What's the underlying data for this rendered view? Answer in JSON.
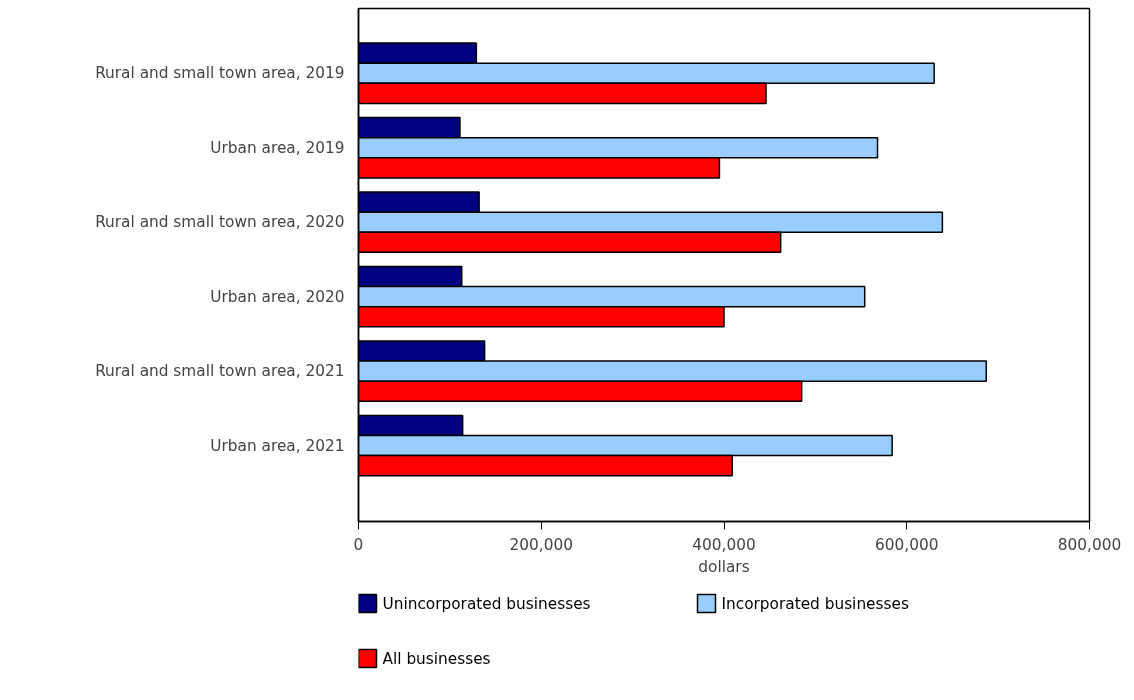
{
  "chart_data": {
    "type": "bar",
    "orientation": "horizontal",
    "categories": [
      "Rural and small town area, 2019",
      "Urban area, 2019",
      "Rural and small town area, 2020",
      "Urban area, 2020",
      "Rural and small town area, 2021",
      "Urban area, 2021"
    ],
    "series": [
      {
        "name": "Unincorporated businesses",
        "color": "#000080",
        "values": [
          129000,
          111000,
          132000,
          113000,
          138000,
          114000
        ]
      },
      {
        "name": "Incorporated businesses",
        "color": "#99ccff",
        "values": [
          630000,
          568000,
          639000,
          554000,
          687000,
          584000
        ]
      },
      {
        "name": "All businesses",
        "color": "#ff0000",
        "values": [
          446000,
          395000,
          462000,
          400000,
          485000,
          409000
        ]
      }
    ],
    "xlabel": "dollars",
    "xlim": [
      0,
      800000
    ],
    "xticks": [
      0,
      {
        "value": 200000,
        "label": "200,000"
      },
      {
        "value": 400000,
        "label": "400,000"
      },
      {
        "value": 600000,
        "label": "600,000"
      },
      {
        "value": 800000,
        "label": "800,000"
      }
    ],
    "grid": false,
    "legend": "bottom"
  }
}
